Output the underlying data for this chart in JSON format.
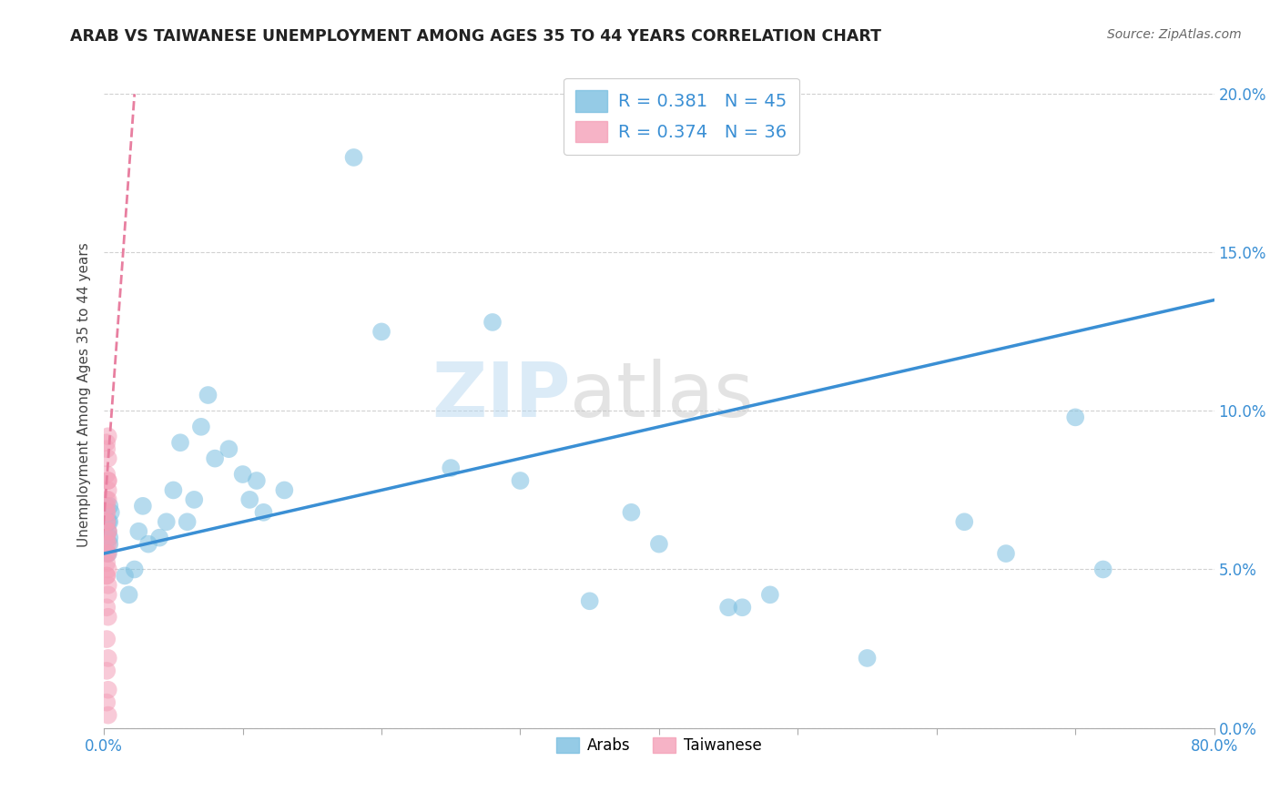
{
  "title": "ARAB VS TAIWANESE UNEMPLOYMENT AMONG AGES 35 TO 44 YEARS CORRELATION CHART",
  "source": "Source: ZipAtlas.com",
  "ylabel": "Unemployment Among Ages 35 to 44 years",
  "xlim": [
    0.0,
    0.8
  ],
  "ylim": [
    0.0,
    0.21
  ],
  "xticks": [
    0.0,
    0.1,
    0.2,
    0.3,
    0.4,
    0.5,
    0.6,
    0.7,
    0.8
  ],
  "yticks": [
    0.0,
    0.05,
    0.1,
    0.15,
    0.2
  ],
  "background_color": "#ffffff",
  "grid_color": "#cccccc",
  "arab_color": "#7bbfe0",
  "taiwanese_color": "#f4a0b8",
  "arab_R": 0.381,
  "arab_N": 45,
  "taiwanese_R": 0.374,
  "taiwanese_N": 36,
  "arab_line_color": "#3a8fd4",
  "taiwanese_line_color": "#e87fa0",
  "label_color": "#3a8fd4",
  "legend_label_arab": "Arabs",
  "legend_label_taiwanese": "Taiwanese",
  "arab_line_x0": 0.0,
  "arab_line_x1": 0.8,
  "arab_line_y0": 0.055,
  "arab_line_y1": 0.135,
  "tai_line_x0": -0.01,
  "tai_line_x1": 0.022,
  "tai_line_y0": 0.005,
  "tai_line_y1": 0.2,
  "arab_x": [
    0.003,
    0.004,
    0.004,
    0.003,
    0.005,
    0.004,
    0.003,
    0.004,
    0.015,
    0.018,
    0.022,
    0.025,
    0.028,
    0.032,
    0.04,
    0.045,
    0.05,
    0.055,
    0.06,
    0.065,
    0.07,
    0.075,
    0.08,
    0.09,
    0.1,
    0.105,
    0.11,
    0.115,
    0.13,
    0.18,
    0.2,
    0.28,
    0.3,
    0.38,
    0.4,
    0.46,
    0.48,
    0.55,
    0.62,
    0.65,
    0.7,
    0.72,
    0.25,
    0.35,
    0.45
  ],
  "arab_y": [
    0.065,
    0.06,
    0.07,
    0.055,
    0.068,
    0.058,
    0.062,
    0.065,
    0.048,
    0.042,
    0.05,
    0.062,
    0.07,
    0.058,
    0.06,
    0.065,
    0.075,
    0.09,
    0.065,
    0.072,
    0.095,
    0.105,
    0.085,
    0.088,
    0.08,
    0.072,
    0.078,
    0.068,
    0.075,
    0.18,
    0.125,
    0.128,
    0.078,
    0.068,
    0.058,
    0.038,
    0.042,
    0.022,
    0.065,
    0.055,
    0.098,
    0.05,
    0.082,
    0.04,
    0.038
  ],
  "taiwanese_x": [
    0.002,
    0.002,
    0.003,
    0.002,
    0.003,
    0.002,
    0.003,
    0.002,
    0.003,
    0.002,
    0.003,
    0.002,
    0.003,
    0.002,
    0.003,
    0.002,
    0.003,
    0.002,
    0.003,
    0.002,
    0.003,
    0.002,
    0.003,
    0.002,
    0.003,
    0.002,
    0.003,
    0.002,
    0.003,
    0.002,
    0.003,
    0.002,
    0.003,
    0.002,
    0.003,
    0.002
  ],
  "taiwanese_y": [
    0.065,
    0.06,
    0.055,
    0.07,
    0.075,
    0.058,
    0.062,
    0.048,
    0.042,
    0.052,
    0.035,
    0.028,
    0.022,
    0.018,
    0.012,
    0.008,
    0.004,
    0.038,
    0.045,
    0.068,
    0.072,
    0.08,
    0.085,
    0.09,
    0.078,
    0.065,
    0.058,
    0.048,
    0.092,
    0.072,
    0.062,
    0.055,
    0.05,
    0.068,
    0.078,
    0.088
  ]
}
